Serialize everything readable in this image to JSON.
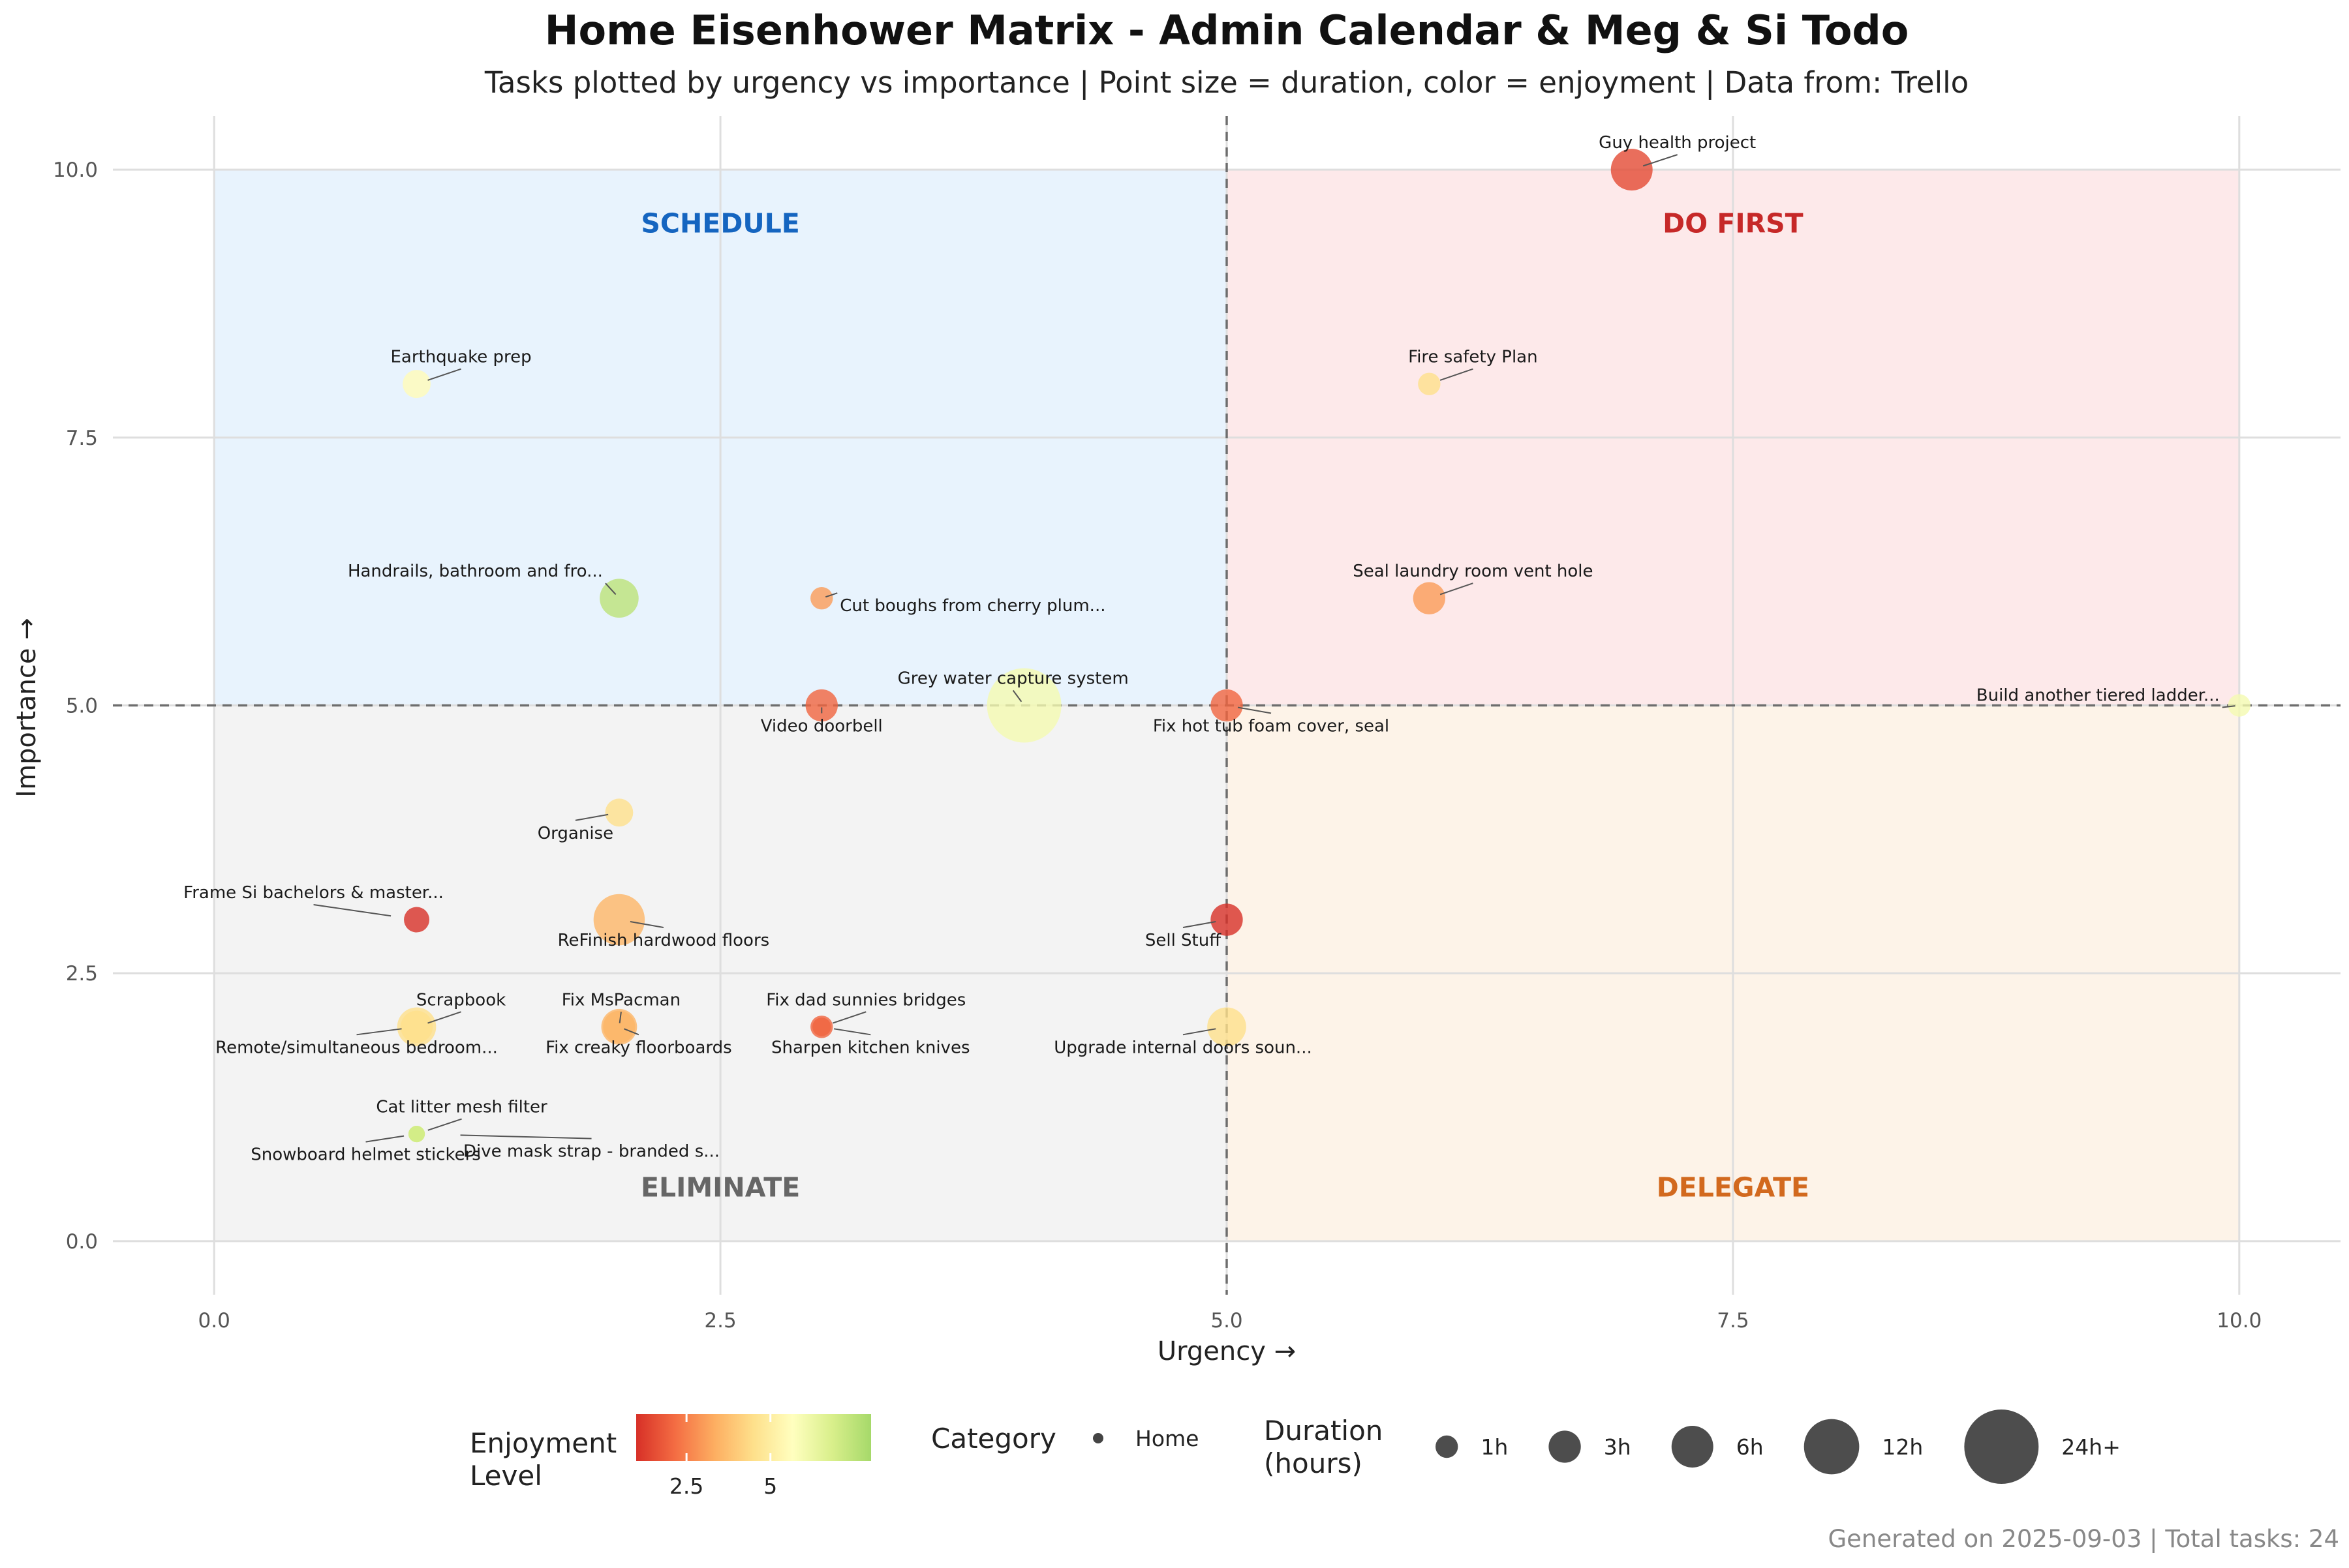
{
  "title": "Home Eisenhower Matrix - Admin Calendar & Meg & Si Todo",
  "subtitle": "Tasks plotted by urgency vs importance | Point size = duration, color = enjoyment | Data from: Trello",
  "caption": "Generated on 2025-09-03 | Total tasks: 24",
  "chart_data": {
    "type": "scatter",
    "xlabel": "Urgency →",
    "ylabel": "Importance →",
    "xlim": [
      -0.5,
      10.5
    ],
    "ylim": [
      -0.5,
      10.5
    ],
    "x_ticks": [
      "0.0",
      "2.5",
      "5.0",
      "7.5",
      "10.0"
    ],
    "y_ticks": [
      "0.0",
      "2.5",
      "5.0",
      "7.5",
      "10.0"
    ],
    "grid": true,
    "reference_lines": {
      "x": 5,
      "y": 5,
      "style": "dashed"
    },
    "quadrants": [
      {
        "name": "SCHEDULE",
        "x": [
          0,
          5
        ],
        "y": [
          5,
          10
        ],
        "fill": "#e8f3fd",
        "label_color": "#1565c0"
      },
      {
        "name": "DO FIRST",
        "x": [
          5,
          10
        ],
        "y": [
          5,
          10
        ],
        "fill": "#fde9ea",
        "label_color": "#c62828"
      },
      {
        "name": "ELIMINATE",
        "x": [
          0,
          5
        ],
        "y": [
          0,
          5
        ],
        "fill": "#f3f3f3",
        "label_color": "#666666"
      },
      {
        "name": "DELEGATE",
        "x": [
          5,
          10
        ],
        "y": [
          0,
          5
        ],
        "fill": "#fdf3e8",
        "label_color": "#d2691e"
      }
    ],
    "points": [
      {
        "label": "Guy health project",
        "x": 7,
        "y": 10,
        "duration_h": 6,
        "enjoyment": 1.5
      },
      {
        "label": "Fire safety Plan",
        "x": 6,
        "y": 8,
        "duration_h": 1,
        "enjoyment": 4.5
      },
      {
        "label": "Earthquake prep",
        "x": 1,
        "y": 8,
        "duration_h": 2,
        "enjoyment": 5.5
      },
      {
        "label": "Handrails, bathroom and fro...",
        "x": 2,
        "y": 6,
        "duration_h": 5,
        "enjoyment": 7.5
      },
      {
        "label": "Cut boughs from cherry plum...",
        "x": 3,
        "y": 6,
        "duration_h": 1,
        "enjoyment": 3
      },
      {
        "label": "Seal laundry room vent hole",
        "x": 6,
        "y": 6,
        "duration_h": 3,
        "enjoyment": 3
      },
      {
        "label": "Grey water capture system",
        "x": 4,
        "y": 5,
        "duration_h": 24,
        "enjoyment": 6
      },
      {
        "label": "Video doorbell",
        "x": 3,
        "y": 5,
        "duration_h": 3,
        "enjoyment": 2
      },
      {
        "label": "Fix hot tub foam cover, seal",
        "x": 5,
        "y": 5,
        "duration_h": 3,
        "enjoyment": 2
      },
      {
        "label": "Build another tiered ladder...",
        "x": 10,
        "y": 5,
        "duration_h": 1,
        "enjoyment": 6
      },
      {
        "label": "Organise",
        "x": 2,
        "y": 4,
        "duration_h": 2,
        "enjoyment": 4.5
      },
      {
        "label": "Frame Si bachelors & master...",
        "x": 1,
        "y": 3,
        "duration_h": 1.5,
        "enjoyment": 1
      },
      {
        "label": "ReFinish hardwood floors",
        "x": 2,
        "y": 3,
        "duration_h": 10,
        "enjoyment": 3.5
      },
      {
        "label": "Sell Stuff",
        "x": 5,
        "y": 3,
        "duration_h": 3,
        "enjoyment": 1
      },
      {
        "label": "Scrapbook",
        "x": 1,
        "y": 2,
        "duration_h": 3,
        "enjoyment": 4.5
      },
      {
        "label": "Remote/simultaneous bedroom...",
        "x": 1,
        "y": 2,
        "duration_h": 5,
        "enjoyment": 4.5
      },
      {
        "label": "Fix MsPacman",
        "x": 2,
        "y": 2,
        "duration_h": 3,
        "enjoyment": 3.5
      },
      {
        "label": "Fix creaky floorboards",
        "x": 2,
        "y": 2,
        "duration_h": 4,
        "enjoyment": 3.5
      },
      {
        "label": "Fix dad sunnies bridges",
        "x": 3,
        "y": 2,
        "duration_h": 1,
        "enjoyment": 2
      },
      {
        "label": "Sharpen kitchen knives",
        "x": 3,
        "y": 2,
        "duration_h": 0.5,
        "enjoyment": 2
      },
      {
        "label": "Upgrade internal doors soun...",
        "x": 5,
        "y": 2,
        "duration_h": 5,
        "enjoyment": 4.5
      },
      {
        "label": "Cat litter mesh filter",
        "x": 1,
        "y": 1,
        "duration_h": 0.3,
        "enjoyment": 7
      },
      {
        "label": "Snowboard helmet stickers",
        "x": 1,
        "y": 1,
        "duration_h": 0.3,
        "enjoyment": 7
      },
      {
        "label": "Dive mask strap - branded s...",
        "x": 1,
        "y": 1,
        "duration_h": 0.3,
        "enjoyment": 7
      }
    ],
    "color_scale": {
      "name": "Enjoyment Level",
      "name_lines": [
        "Enjoyment",
        "Level"
      ],
      "domain": [
        1,
        8
      ],
      "colors": [
        "#d73027",
        "#f46d43",
        "#fdae61",
        "#fee08b",
        "#ffffbf",
        "#d9ef8b",
        "#a6d96a"
      ],
      "ticks": [
        "2.5",
        "5"
      ]
    },
    "category_legend": {
      "name": "Category",
      "items": [
        "Home"
      ]
    },
    "size_legend": {
      "name": "Duration (hours)",
      "name_lines": [
        "Duration",
        "(hours)"
      ],
      "items": [
        {
          "label": "1h",
          "hours": 1
        },
        {
          "label": "3h",
          "hours": 3
        },
        {
          "label": "6h",
          "hours": 6
        },
        {
          "label": "12h",
          "hours": 12
        },
        {
          "label": "24h+",
          "hours": 24
        }
      ]
    }
  }
}
